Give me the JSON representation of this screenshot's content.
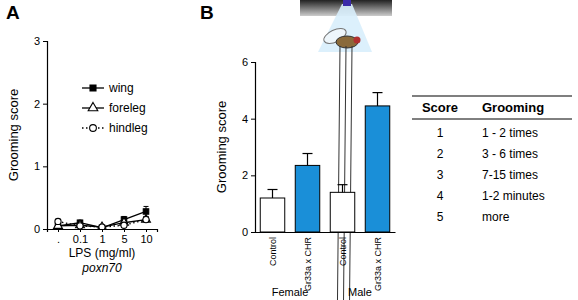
{
  "chart_data": [
    {
      "type": "line",
      "title": "A",
      "x_label": "LPS (mg/ml)",
      "y_label": "Grooming score",
      "annotations": [
        "poxn70"
      ],
      "categories": [
        ".",
        "0.1",
        "1",
        "5",
        "10"
      ],
      "series": [
        {
          "name": "wing",
          "color": "#000000",
          "marker": "square",
          "line_style": "solid",
          "values": [
            0.05,
            0.1,
            0.02,
            0.15,
            0.28
          ],
          "errors": [
            0.03,
            0.04,
            0.02,
            0.05,
            0.08
          ]
        },
        {
          "name": "foreleg",
          "color": "#000000",
          "marker": "triangle-open",
          "line_style": "solid",
          "values": [
            0.05,
            0.06,
            0.03,
            0.1,
            0.15
          ],
          "errors": [
            0.03,
            0.03,
            0.02,
            0.04,
            0.05
          ]
        },
        {
          "name": "hindleg",
          "color": "#000000",
          "marker": "circle-open",
          "line_style": "dotted",
          "values": [
            0.12,
            0.05,
            0.03,
            0.06,
            0.15
          ],
          "errors": [
            0.04,
            0.03,
            0.02,
            0.03,
            0.05
          ]
        }
      ],
      "ylim": [
        0,
        3
      ],
      "yticks": [
        0,
        1,
        2,
        3
      ],
      "grid": false,
      "legend": "upper right"
    },
    {
      "type": "bar",
      "title": "B",
      "y_label": "Grooming score",
      "categories": [
        "Control",
        "Gr33a x CHR",
        "Control",
        "Gr33a x CHR"
      ],
      "groups": [
        "Female",
        "Male"
      ],
      "values": [
        1.2,
        2.35,
        1.4,
        4.45
      ],
      "errors": [
        0.3,
        0.42,
        0.27,
        0.47
      ],
      "colors": [
        "#ffffff",
        "#1a8fd8",
        "#ffffff",
        "#1a8fd8"
      ],
      "ylim": [
        0,
        6
      ],
      "yticks": [
        0,
        2,
        4,
        6
      ],
      "grid": false
    }
  ],
  "table": {
    "columns": [
      "Score",
      "Grooming"
    ],
    "rows": [
      [
        1,
        "1 - 2 times"
      ],
      [
        2,
        "3 - 6 times"
      ],
      [
        3,
        "7-15 times"
      ],
      [
        4,
        "1-2 minutes"
      ],
      [
        5,
        "more"
      ]
    ]
  }
}
